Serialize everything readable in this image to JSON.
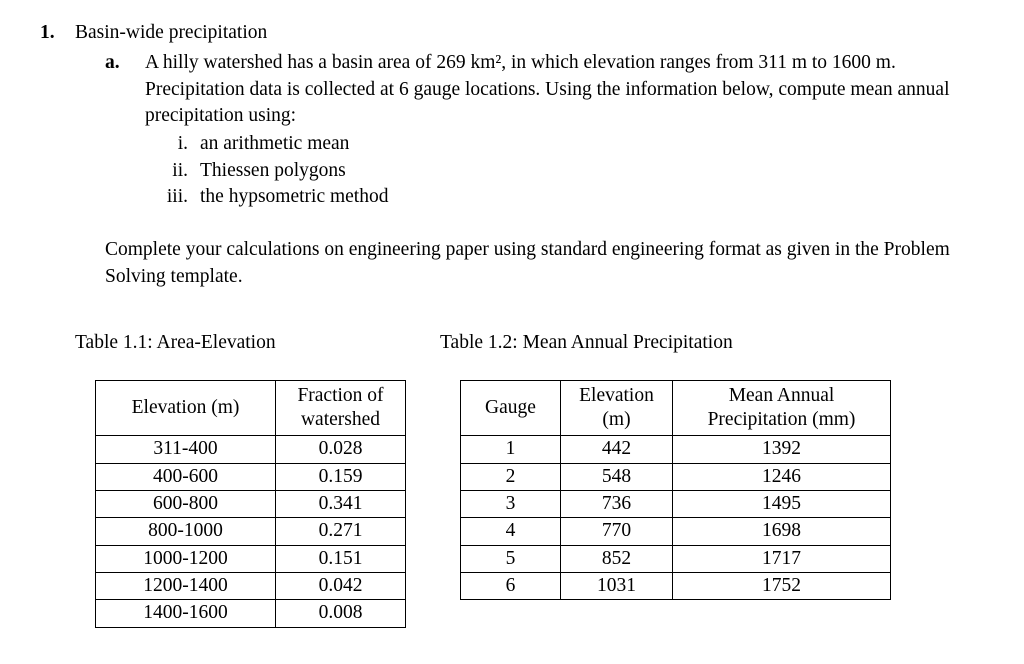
{
  "problem": {
    "number": "1.",
    "title": "Basin-wide precipitation",
    "sub_label": "a.",
    "sub_text": "A hilly watershed has a basin area of 269 km², in which elevation ranges from 311 m to 1600 m. Precipitation data is collected at 6 gauge locations. Using the information below, compute mean annual precipitation using:",
    "list": [
      {
        "marker": "i.",
        "text": "an arithmetic mean"
      },
      {
        "marker": "ii.",
        "text": "Thiessen polygons"
      },
      {
        "marker": "iii.",
        "text": "the hypsometric method"
      }
    ],
    "note": "Complete your calculations on engineering paper using standard engineering format as given in the Problem Solving template."
  },
  "tables": {
    "area_elevation": {
      "caption": "Table 1.1: Area-Elevation",
      "headers": [
        "Elevation (m)",
        "Fraction of watershed"
      ],
      "rows": [
        [
          "311-400",
          "0.028"
        ],
        [
          "400-600",
          "0.159"
        ],
        [
          "600-800",
          "0.341"
        ],
        [
          "800-1000",
          "0.271"
        ],
        [
          "1000-1200",
          "0.151"
        ],
        [
          "1200-1400",
          "0.042"
        ],
        [
          "1400-1600",
          "0.008"
        ]
      ]
    },
    "precipitation": {
      "caption": "Table 1.2: Mean Annual Precipitation",
      "headers": [
        "Gauge",
        "Elevation (m)",
        "Mean Annual Precipitation (mm)"
      ],
      "rows": [
        [
          "1",
          "442",
          "1392"
        ],
        [
          "2",
          "548",
          "1246"
        ],
        [
          "3",
          "736",
          "1495"
        ],
        [
          "4",
          "770",
          "1698"
        ],
        [
          "5",
          "852",
          "1717"
        ],
        [
          "6",
          "1031",
          "1752"
        ]
      ]
    }
  }
}
